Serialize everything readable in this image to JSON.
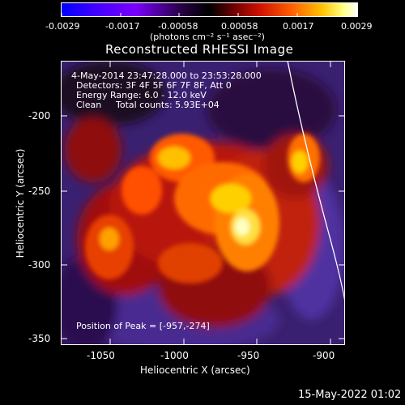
{
  "colorbar": {
    "ticks": [
      "-0.0029",
      "-0.0017",
      "-0.00058",
      "0.00058",
      "0.0017",
      "0.0029"
    ],
    "unit_label": "(photons cm⁻² s⁻¹ asec⁻²)",
    "colors": [
      "#0000ff",
      "#5a00ff",
      "#8a00ff",
      "#000000",
      "#8b0000",
      "#ff2000",
      "#ff8c00",
      "#ffff60",
      "#ffffff"
    ]
  },
  "plot": {
    "title": "Reconstructed RHESSI Image",
    "time_range": "4-May-2014 23:47:28.000 to 23:53:28.000",
    "detectors": "Detectors: 3F 4F 5F 6F 7F 8F, Att 0",
    "energy": "Energy Range: 6.0 - 12.0 keV",
    "clean": "Clean",
    "counts": "Total counts: 5.93E+04",
    "peak": "Position of Peak = [-957,-274]",
    "xlabel": "Heliocentric X (arcsec)",
    "ylabel": "Heliocentric Y (arcsec)",
    "x_ticks": [
      "-1050",
      "-1000",
      "-950",
      "-900"
    ],
    "y_ticks": [
      "-200",
      "-250",
      "-300",
      "-350"
    ],
    "x_range": [
      -1078,
      -888
    ],
    "y_range": [
      -353,
      -168
    ]
  },
  "footer": {
    "date": "15-May-2022 01:02"
  }
}
